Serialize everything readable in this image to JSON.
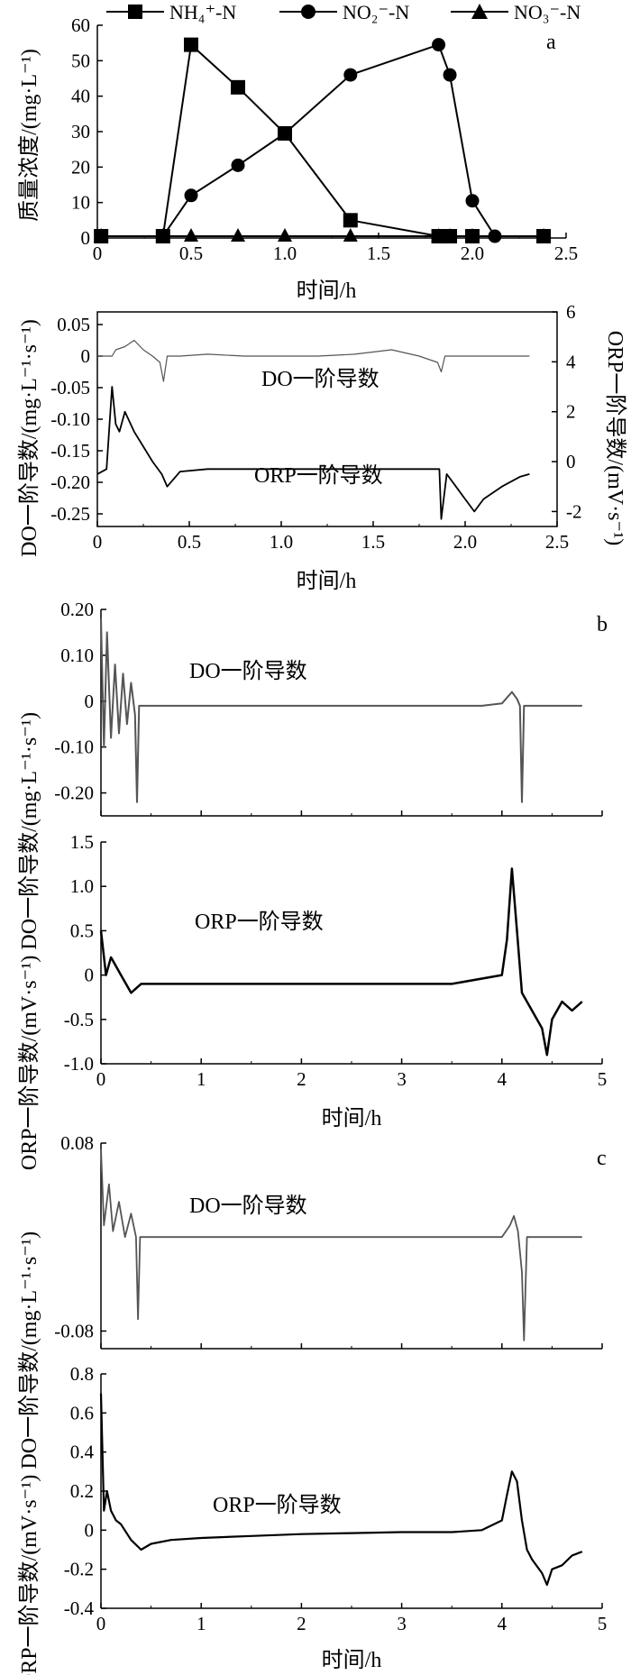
{
  "chart_data": [
    {
      "panel": "a",
      "type": "line",
      "xlabel": "时间/h",
      "ylabel": "质量浓度/(mg·L⁻¹)",
      "xlim": [
        0,
        2.5
      ],
      "ylim": [
        0,
        60
      ],
      "x_ticks": [
        "0",
        "0.5",
        "1.0",
        "1.5",
        "2.0",
        "2.5"
      ],
      "y_ticks": [
        "0",
        "10",
        "20",
        "30",
        "40",
        "50",
        "60"
      ],
      "legend": "top",
      "series": [
        {
          "name": "NH₄⁺-N",
          "marker": "square",
          "x": [
            0.02,
            0.35,
            0.5,
            0.75,
            1.0,
            1.35,
            1.82,
            1.88,
            2.0,
            2.38
          ],
          "y": [
            0.5,
            0.5,
            54.5,
            42.5,
            29.5,
            5.0,
            0.5,
            0.5,
            0.5,
            0.5
          ]
        },
        {
          "name": "NO₂⁻-N",
          "marker": "circle",
          "x": [
            0.35,
            0.5,
            0.75,
            1.0,
            1.35,
            1.82,
            1.88,
            2.0,
            2.12
          ],
          "y": [
            0.5,
            12.0,
            20.5,
            29.5,
            46.0,
            54.5,
            46.0,
            10.5,
            0.5
          ]
        },
        {
          "name": "NO₃⁻-N",
          "marker": "triangle",
          "x": [
            0.02,
            0.35,
            0.5,
            0.75,
            1.0,
            1.35,
            1.82,
            1.88,
            2.0,
            2.38
          ],
          "y": [
            0.5,
            0.5,
            0.5,
            0.5,
            0.5,
            0.5,
            0.5,
            0.5,
            0.5,
            0.5
          ]
        }
      ]
    },
    {
      "panel": "a-derivatives",
      "type": "line",
      "xlabel": "时间/h",
      "ylabel": "DO一阶导数/(mg·L⁻¹·s⁻¹)",
      "ylabel_right": "ORP一阶导数/(mV·s⁻¹)",
      "xlim": [
        0,
        2.5
      ],
      "ylim": [
        -0.27,
        0.07
      ],
      "ylim_right": [
        -2.6,
        6.0
      ],
      "x_ticks": [
        "0",
        "0.5",
        "1.0",
        "1.5",
        "2.0",
        "2.5"
      ],
      "y_ticks": [
        "0.05",
        "0",
        "-0.05",
        "-0.10",
        "-0.15",
        "-0.20",
        "-0.25"
      ],
      "y_ticks_right": [
        "6",
        "4",
        "2",
        "0",
        "-2"
      ],
      "annotations": [
        "DO一阶导数",
        "ORP一阶导数"
      ],
      "series": [
        {
          "name": "DO一阶导数",
          "axis": "left",
          "x": [
            0.0,
            0.08,
            0.1,
            0.15,
            0.2,
            0.25,
            0.3,
            0.34,
            0.36,
            0.38,
            0.45,
            0.6,
            0.8,
            1.0,
            1.2,
            1.4,
            1.6,
            1.75,
            1.85,
            1.87,
            1.89,
            1.95,
            2.1,
            2.35
          ],
          "y": [
            0.0,
            0.0,
            0.01,
            0.015,
            0.025,
            0.01,
            0.0,
            -0.01,
            -0.04,
            0.0,
            0.0,
            0.003,
            0.0,
            0.0,
            0.0,
            0.003,
            0.01,
            0.0,
            -0.01,
            -0.025,
            0.0,
            0.0,
            0.0,
            0.0
          ]
        },
        {
          "name": "ORP一阶导数",
          "axis": "right",
          "x": [
            0.0,
            0.05,
            0.08,
            0.1,
            0.12,
            0.15,
            0.2,
            0.25,
            0.3,
            0.35,
            0.38,
            0.45,
            0.6,
            0.8,
            1.0,
            1.2,
            1.4,
            1.6,
            1.8,
            1.86,
            1.87,
            1.9,
            1.95,
            2.0,
            2.05,
            2.1,
            2.2,
            2.3,
            2.35
          ],
          "y": [
            -0.5,
            -0.3,
            3.0,
            1.5,
            1.2,
            2.0,
            1.2,
            0.6,
            0.0,
            -0.5,
            -1.0,
            -0.4,
            -0.3,
            -0.3,
            -0.3,
            -0.3,
            -0.3,
            -0.3,
            -0.3,
            -0.3,
            -2.3,
            -0.5,
            -1.0,
            -1.5,
            -2.0,
            -1.5,
            -1.0,
            -0.6,
            -0.5
          ]
        }
      ]
    },
    {
      "panel": "b",
      "type": "line",
      "ylabel": "DO一阶导数/(mg·L⁻¹·s⁻¹)",
      "xlim": [
        0,
        5
      ],
      "ylim": [
        -0.25,
        0.2
      ],
      "y_ticks": [
        "0.20",
        "0.10",
        "0",
        "-0.10",
        "-0.20"
      ],
      "annotation": "DO一阶导数",
      "series": [
        {
          "name": "DO一阶导数",
          "x": [
            0.0,
            0.03,
            0.06,
            0.1,
            0.14,
            0.18,
            0.22,
            0.26,
            0.3,
            0.34,
            0.36,
            0.38,
            0.5,
            1.0,
            2.0,
            3.0,
            3.8,
            4.0,
            4.1,
            4.15,
            4.18,
            4.2,
            4.22,
            4.3,
            4.8
          ],
          "y": [
            0.18,
            -0.1,
            0.15,
            -0.08,
            0.08,
            -0.07,
            0.06,
            -0.05,
            0.04,
            -0.03,
            -0.22,
            -0.01,
            -0.01,
            -0.01,
            -0.01,
            -0.01,
            -0.01,
            -0.005,
            0.02,
            0.005,
            -0.01,
            -0.22,
            -0.01,
            -0.01,
            -0.01
          ]
        }
      ]
    },
    {
      "panel": "b-orp",
      "type": "line",
      "xlabel": "时间/h",
      "ylabel": "ORP一阶导数/(mV·s⁻¹)",
      "xlim": [
        0,
        5
      ],
      "ylim": [
        -1.0,
        1.5
      ],
      "x_ticks": [
        "0",
        "1",
        "2",
        "3",
        "4",
        "5"
      ],
      "y_ticks": [
        "1.5",
        "1.0",
        "0.5",
        "0",
        "-0.5",
        "-1.0"
      ],
      "annotation": "ORP一阶导数",
      "series": [
        {
          "name": "ORP一阶导数",
          "x": [
            0.0,
            0.05,
            0.1,
            0.2,
            0.3,
            0.4,
            0.8,
            1.5,
            2.5,
            3.5,
            4.0,
            4.05,
            4.1,
            4.15,
            4.2,
            4.3,
            4.4,
            4.45,
            4.5,
            4.6,
            4.7,
            4.8
          ],
          "y": [
            0.5,
            0.0,
            0.2,
            0.0,
            -0.2,
            -0.1,
            -0.1,
            -0.1,
            -0.1,
            -0.1,
            0.0,
            0.4,
            1.2,
            0.5,
            -0.2,
            -0.4,
            -0.6,
            -0.9,
            -0.5,
            -0.3,
            -0.4,
            -0.3
          ]
        }
      ]
    },
    {
      "panel": "c",
      "type": "line",
      "ylabel": "DO一阶导数/(mg·L⁻¹·s⁻¹)",
      "xlim": [
        0,
        5
      ],
      "ylim": [
        -0.095,
        0.08
      ],
      "y_ticks": [
        "0.08",
        "-0.08"
      ],
      "annotation": "DO一阶导数",
      "series": [
        {
          "name": "DO一阶导数",
          "x": [
            0.0,
            0.03,
            0.08,
            0.12,
            0.18,
            0.24,
            0.3,
            0.35,
            0.37,
            0.39,
            0.5,
            1.0,
            2.0,
            3.0,
            4.0,
            4.08,
            4.12,
            4.16,
            4.2,
            4.22,
            4.25,
            4.3,
            4.8
          ],
          "y": [
            0.075,
            0.01,
            0.045,
            0.005,
            0.03,
            0.0,
            0.02,
            0.0,
            -0.07,
            0.0,
            0.0,
            0.0,
            0.0,
            0.0,
            0.0,
            0.01,
            0.018,
            0.005,
            -0.03,
            -0.088,
            0.0,
            0.0,
            0.0
          ]
        }
      ]
    },
    {
      "panel": "c-orp",
      "type": "line",
      "xlabel": "时间/h",
      "ylabel": "ORP一阶导数/(mV·s⁻¹)",
      "xlim": [
        0,
        5
      ],
      "ylim": [
        -0.4,
        0.8
      ],
      "x_ticks": [
        "0",
        "1",
        "2",
        "3",
        "4",
        "5"
      ],
      "y_ticks": [
        "0.8",
        "0.6",
        "0.4",
        "0.2",
        "0",
        "-0.2",
        "-0.4"
      ],
      "annotation": "ORP一阶导数",
      "series": [
        {
          "name": "ORP一阶导数",
          "x": [
            0.0,
            0.03,
            0.06,
            0.1,
            0.15,
            0.2,
            0.3,
            0.4,
            0.5,
            0.7,
            1.0,
            1.5,
            2.0,
            2.5,
            3.0,
            3.5,
            3.8,
            4.0,
            4.05,
            4.1,
            4.15,
            4.2,
            4.25,
            4.3,
            4.4,
            4.45,
            4.5,
            4.6,
            4.7,
            4.8
          ],
          "y": [
            0.7,
            0.1,
            0.2,
            0.1,
            0.05,
            0.03,
            -0.05,
            -0.1,
            -0.07,
            -0.05,
            -0.04,
            -0.03,
            -0.02,
            -0.015,
            -0.01,
            -0.01,
            0.0,
            0.05,
            0.18,
            0.3,
            0.25,
            0.05,
            -0.1,
            -0.15,
            -0.22,
            -0.28,
            -0.2,
            -0.18,
            -0.13,
            -0.11
          ]
        }
      ]
    }
  ],
  "labels": {
    "panel_a": "a",
    "panel_b": "b",
    "panel_c": "c",
    "xlabel": "时间/h",
    "legend_nh4": "NH₄⁺-N",
    "legend_no2": "NO₂⁻-N",
    "legend_no3": "NO₃⁻-N",
    "ylabel_a": "质量浓度/(mg·L⁻¹)",
    "ylabel_do": "DO一阶导数/(mg·L⁻¹·s⁻¹)",
    "ylabel_orp": "ORP一阶导数/(mV·s⁻¹)",
    "do_annot": "DO一阶导数",
    "orp_annot": "ORP一阶导数"
  },
  "colors": {
    "axis": "#000000",
    "a_lines": "#000000",
    "do_trace": "#555555",
    "orp_trace": "#000000"
  }
}
